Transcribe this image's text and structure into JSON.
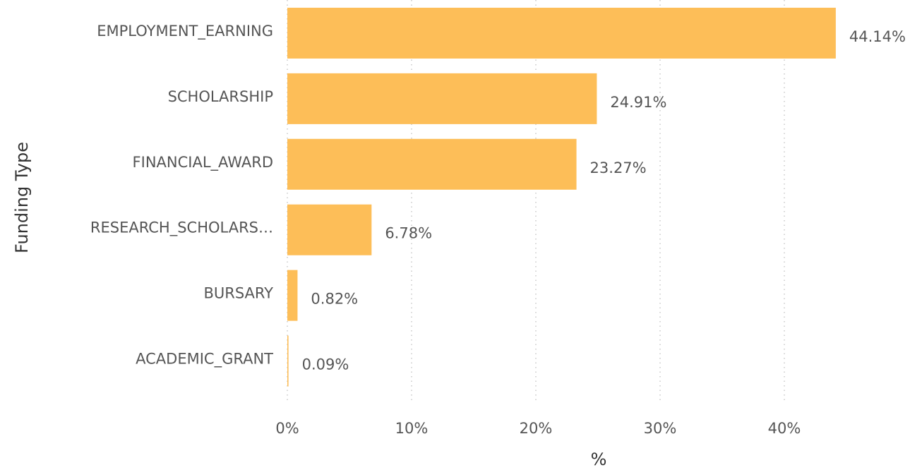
{
  "chart_data": {
    "type": "bar",
    "orientation": "horizontal",
    "y_label": "Funding Type",
    "x_label": "%",
    "categories": [
      "EMPLOYMENT_EARNING",
      "SCHOLARSHIP",
      "FINANCIAL_AWARD",
      "RESEARCH_SCHOLARS…",
      "BURSARY",
      "ACADEMIC_GRANT"
    ],
    "values": [
      44.14,
      24.91,
      23.27,
      6.78,
      0.82,
      0.09
    ],
    "value_labels": [
      "44.14%",
      "24.91%",
      "23.27%",
      "6.78%",
      "0.82%",
      "0.09%"
    ],
    "color": "#fdbe58",
    "xlim": [
      0,
      50
    ],
    "xticks": [
      {
        "value": 0,
        "label": "0%"
      },
      {
        "value": 10,
        "label": "10%"
      },
      {
        "value": 20,
        "label": "20%"
      },
      {
        "value": 30,
        "label": "30%"
      },
      {
        "value": 40,
        "label": "40%"
      }
    ],
    "grid": true
  }
}
